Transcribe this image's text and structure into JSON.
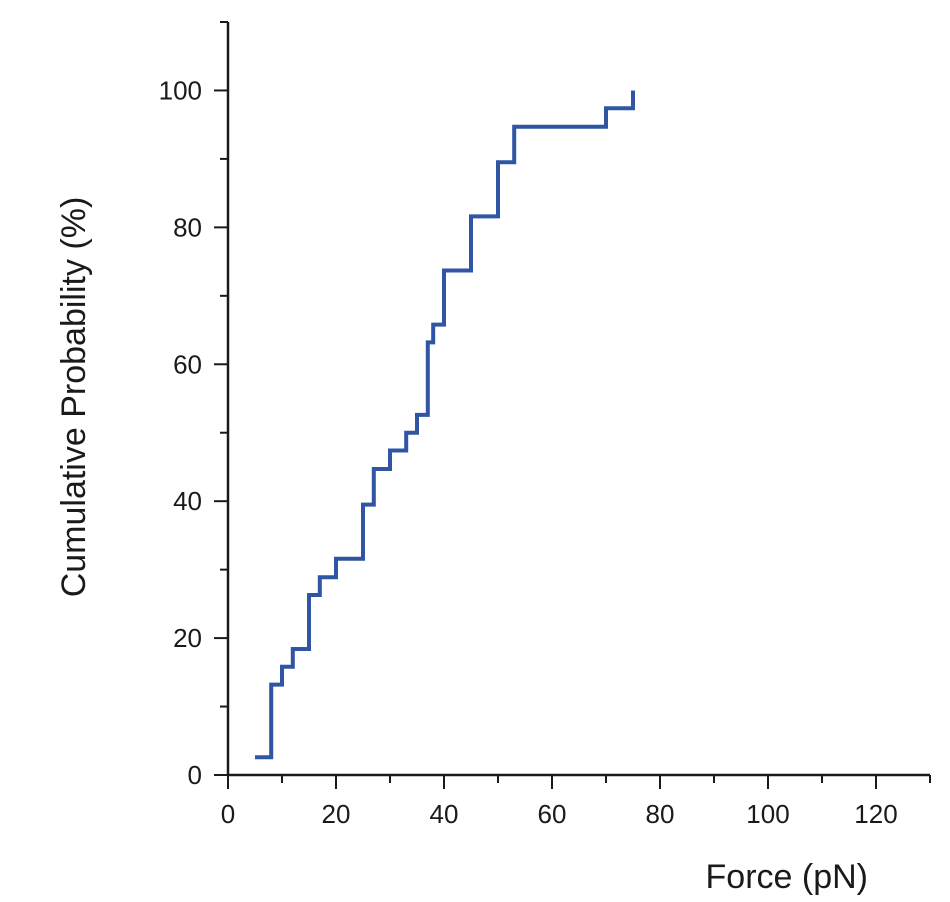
{
  "chart_data": {
    "type": "line",
    "line_style": "step",
    "title": "",
    "xlabel": "Force (pN)",
    "ylabel": "Cumulative Probability (%)",
    "xlim": [
      0,
      130
    ],
    "ylim": [
      0,
      110
    ],
    "x_ticks": [
      0,
      20,
      40,
      60,
      80,
      100,
      120
    ],
    "x_tick_labels": [
      "0",
      "20",
      "40",
      "60",
      "80",
      "100",
      "120"
    ],
    "y_ticks": [
      0,
      20,
      40,
      60,
      80,
      100
    ],
    "y_tick_labels": [
      "0",
      "20",
      "40",
      "60",
      "80",
      "100"
    ],
    "grid": false,
    "legend": "none",
    "colors": {
      "series": "#2f55a4",
      "axis": "#1a1a1a"
    },
    "series": [
      {
        "x": [
          5,
          8,
          10,
          12,
          15,
          17,
          20,
          25,
          27,
          30,
          33,
          35,
          37,
          38,
          40,
          45,
          50,
          53,
          70,
          75
        ],
        "y": [
          2.6,
          13.2,
          15.8,
          18.4,
          26.3,
          28.9,
          31.6,
          39.5,
          44.7,
          47.4,
          50.0,
          52.6,
          63.2,
          65.8,
          73.7,
          81.6,
          89.5,
          94.7,
          97.4,
          100.0
        ]
      }
    ]
  }
}
